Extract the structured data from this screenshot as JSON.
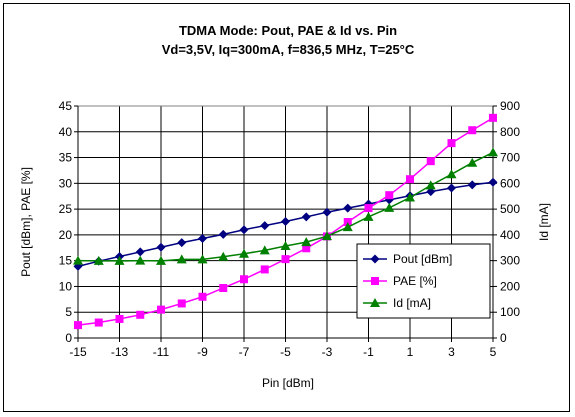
{
  "chart_data": {
    "type": "line",
    "title": "TDMA Mode: Pout, PAE & Id vs. Pin",
    "subtitle": "Vd=3,5V, Iq=300mA, f=836,5 MHz, T=25°C",
    "xlabel": "Pin [dBm]",
    "ylabel": "Pout [dBm], PAE [%]",
    "y2label": "Id [mA]",
    "xlim": [
      -15,
      5
    ],
    "ylim": [
      0,
      45
    ],
    "y2lim": [
      0,
      900
    ],
    "x_ticks": [
      -15,
      -13,
      -11,
      -9,
      -7,
      -5,
      -3,
      -1,
      1,
      3,
      5
    ],
    "y_ticks": [
      0,
      5,
      10,
      15,
      20,
      25,
      30,
      35,
      40,
      45
    ],
    "y2_ticks": [
      0,
      100,
      200,
      300,
      400,
      500,
      600,
      700,
      800,
      900
    ],
    "grid": true,
    "legend_position": "right",
    "x": [
      -15,
      -14,
      -13,
      -12,
      -11,
      -10,
      -9,
      -8,
      -7,
      -6,
      -5,
      -4,
      -3,
      -2,
      -1,
      0,
      1,
      2,
      3,
      4,
      5
    ],
    "series": [
      {
        "name": "Pout [dBm]",
        "axis": "left",
        "color": "#000080",
        "marker": "diamond",
        "values": [
          13.9,
          14.9,
          15.8,
          16.7,
          17.6,
          18.5,
          19.3,
          20.1,
          21.0,
          21.8,
          22.6,
          23.5,
          24.4,
          25.2,
          26.0,
          26.8,
          27.6,
          28.4,
          29.1,
          29.7,
          30.2
        ]
      },
      {
        "name": "PAE [%]",
        "axis": "left",
        "color": "#FF00FF",
        "marker": "square",
        "values": [
          2.5,
          3.0,
          3.7,
          4.5,
          5.5,
          6.7,
          8.0,
          9.7,
          11.4,
          13.3,
          15.3,
          17.4,
          19.7,
          22.5,
          25.2,
          27.7,
          30.8,
          34.3,
          37.8,
          40.3,
          42.7
        ]
      },
      {
        "name": "Id [mA]",
        "axis": "right",
        "color": "#008000",
        "marker": "triangle",
        "values": [
          300,
          299,
          299,
          300,
          299,
          305,
          305,
          315,
          327,
          340,
          357,
          372,
          395,
          430,
          470,
          505,
          545,
          592,
          635,
          680,
          720
        ]
      }
    ]
  }
}
